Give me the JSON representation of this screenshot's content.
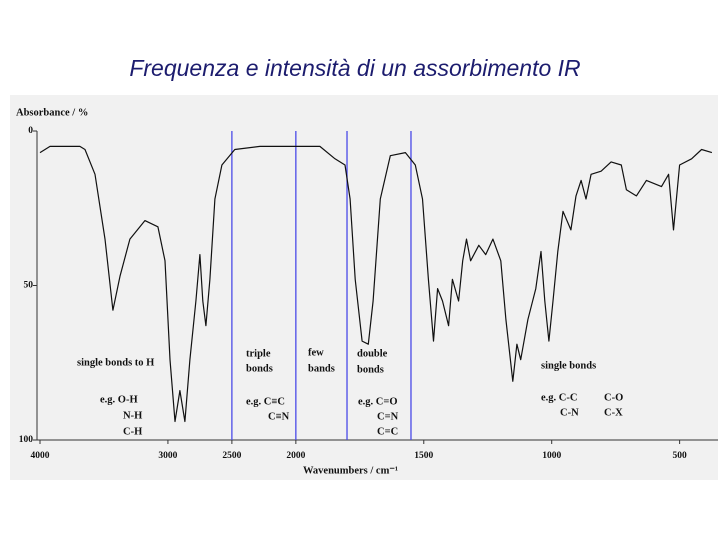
{
  "chart_data": {
    "type": "line",
    "title": "Frequenza e intensità di un assorbimento IR",
    "ylabel": "Absorbance / %",
    "xlabel": "Wavenumbers / cm⁻¹",
    "xlim": [
      4000,
      350
    ],
    "x_break": 2000,
    "ylim": [
      0,
      100
    ],
    "y_inverted": true,
    "xticks": [
      4000,
      3000,
      2500,
      2000,
      1500,
      1000,
      500
    ],
    "yticks": [
      0,
      50,
      100
    ],
    "dividers": [
      2500,
      2000,
      1800,
      1550
    ],
    "divider_color": "#4a4ae8",
    "series": [
      {
        "name": "Absorbance",
        "color": "#111111",
        "x": [
          4000,
          3922,
          3688,
          3648,
          3570,
          3492,
          3430,
          3375,
          3297,
          3180,
          3078,
          3023,
          2984,
          2945,
          2906,
          2867,
          2828,
          2781,
          2750,
          2727,
          2703,
          2672,
          2633,
          2578,
          2477,
          2281,
          2000,
          1906,
          1847,
          1808,
          1788,
          1768,
          1741,
          1717,
          1698,
          1670,
          1631,
          1572,
          1533,
          1505,
          1482,
          1462,
          1446,
          1427,
          1403,
          1388,
          1364,
          1348,
          1333,
          1317,
          1285,
          1258,
          1230,
          1199,
          1179,
          1152,
          1136,
          1121,
          1093,
          1062,
          1042,
          1027,
          1011,
          995,
          976,
          956,
          925,
          905,
          885,
          866,
          846,
          807,
          768,
          728,
          708,
          669,
          630,
          571,
          543,
          524,
          500,
          453,
          414,
          374
        ],
        "values": [
          7,
          5,
          5,
          6,
          14,
          35,
          58,
          47,
          35,
          29,
          31,
          42,
          74,
          94,
          84,
          94,
          74,
          55,
          40,
          55,
          63,
          48,
          22,
          11,
          6,
          5,
          5,
          5,
          9,
          11,
          22,
          48,
          68,
          69,
          55,
          22,
          8,
          7,
          11,
          22,
          48,
          68,
          51,
          55,
          63,
          48,
          55,
          42,
          35,
          42,
          37,
          40,
          35,
          42,
          61,
          81,
          69,
          74,
          61,
          51,
          39,
          55,
          68,
          55,
          39,
          26,
          32,
          21,
          16,
          22,
          14,
          13,
          10,
          11,
          19,
          21,
          16,
          18,
          14,
          32,
          11,
          9,
          6,
          7
        ]
      }
    ],
    "annotations": [
      "single bonds to H",
      "e.g. O-H",
      "N-H",
      "C-H",
      "triple",
      "bonds",
      "e.g. C≡C",
      "C≡N",
      "few",
      "bands",
      "double",
      "bonds",
      "e.g. C=O",
      "C=N",
      "C=C",
      "single bonds",
      "e.g. C-C",
      "C-N",
      "C-O",
      "C-X"
    ]
  }
}
